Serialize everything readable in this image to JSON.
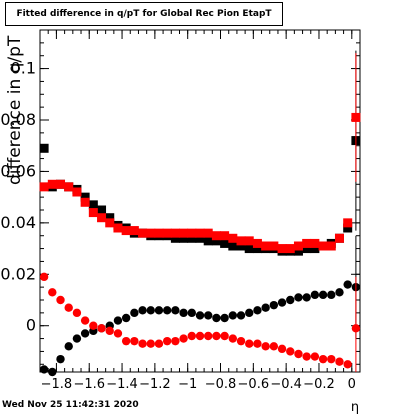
{
  "title": "Fitted difference in q/pT for Global Rec Pion EtapT",
  "timestamp": "Wed Nov 25 11:42:31 2020",
  "chart_data": {
    "type": "scatter",
    "title": "Fitted difference in q/pT for Global Rec Pion EtapT",
    "xlabel": "η",
    "ylabel": "difference in q/pT",
    "xlim": [
      -1.9,
      0.05
    ],
    "ylim": [
      -0.018,
      0.115
    ],
    "x_ticks": [
      -1.8,
      -1.6,
      -1.4,
      -1.2,
      -1,
      -0.8,
      -0.6,
      -0.4,
      -0.2,
      0
    ],
    "x_tick_labels": [
      "−1.8",
      "−1.6",
      "−1.4",
      "−1.2",
      "−1",
      "−0.8",
      "−0.6",
      "−0.4",
      "−0.2",
      "0"
    ],
    "y_ticks": [
      0,
      0.02,
      0.04,
      0.06,
      0.08,
      0.1
    ],
    "y_tick_labels": [
      "0",
      "0.02",
      "0.04",
      "0.06",
      "0.08",
      "0.1"
    ],
    "grid": false,
    "legend": "none",
    "series": [
      {
        "marker": "square",
        "color": "#000000",
        "x": [
          -1.875,
          -1.825,
          -1.775,
          -1.725,
          -1.675,
          -1.625,
          -1.575,
          -1.525,
          -1.475,
          -1.425,
          -1.375,
          -1.325,
          -1.275,
          -1.225,
          -1.175,
          -1.125,
          -1.075,
          -1.025,
          -0.975,
          -0.925,
          -0.875,
          -0.825,
          -0.775,
          -0.725,
          -0.675,
          -0.625,
          -0.575,
          -0.525,
          -0.475,
          -0.425,
          -0.375,
          -0.325,
          -0.275,
          -0.225,
          -0.175,
          -0.125,
          -0.075,
          -0.025,
          0.025
        ],
        "y": [
          0.069,
          0.054,
          0.055,
          0.054,
          0.053,
          0.05,
          0.047,
          0.045,
          0.042,
          0.039,
          0.038,
          0.036,
          0.036,
          0.035,
          0.035,
          0.035,
          0.034,
          0.034,
          0.034,
          0.034,
          0.033,
          0.033,
          0.032,
          0.031,
          0.031,
          0.03,
          0.03,
          0.03,
          0.03,
          0.029,
          0.029,
          0.029,
          0.03,
          0.03,
          0.031,
          0.032,
          0.034,
          0.038,
          0.072
        ],
        "error": [
          0.0015,
          0.001,
          0.001,
          0.001,
          0.001,
          0.001,
          0.001,
          0.001,
          0.001,
          0.001,
          0.001,
          0.001,
          0.001,
          0.001,
          0.001,
          0.001,
          0.001,
          0.001,
          0.001,
          0.001,
          0.001,
          0.001,
          0.001,
          0.001,
          0.001,
          0.001,
          0.001,
          0.001,
          0.001,
          0.001,
          0.001,
          0.001,
          0.001,
          0.001,
          0.001,
          0.001,
          0.001,
          0.001,
          0.035
        ]
      },
      {
        "marker": "square",
        "color": "#ff0000",
        "x": [
          -1.875,
          -1.825,
          -1.775,
          -1.725,
          -1.675,
          -1.625,
          -1.575,
          -1.525,
          -1.475,
          -1.425,
          -1.375,
          -1.325,
          -1.275,
          -1.225,
          -1.175,
          -1.125,
          -1.075,
          -1.025,
          -0.975,
          -0.925,
          -0.875,
          -0.825,
          -0.775,
          -0.725,
          -0.675,
          -0.625,
          -0.575,
          -0.525,
          -0.475,
          -0.425,
          -0.375,
          -0.325,
          -0.275,
          -0.225,
          -0.175,
          -0.125,
          -0.075,
          -0.025,
          0.025
        ],
        "y": [
          0.054,
          0.055,
          0.055,
          0.054,
          0.052,
          0.048,
          0.044,
          0.042,
          0.04,
          0.038,
          0.037,
          0.037,
          0.036,
          0.036,
          0.036,
          0.036,
          0.036,
          0.036,
          0.036,
          0.036,
          0.036,
          0.035,
          0.035,
          0.034,
          0.033,
          0.033,
          0.032,
          0.031,
          0.031,
          0.03,
          0.03,
          0.031,
          0.032,
          0.032,
          0.031,
          0.031,
          0.034,
          0.04,
          0.081
        ],
        "error": [
          0.0015,
          0.001,
          0.001,
          0.001,
          0.001,
          0.001,
          0.001,
          0.001,
          0.001,
          0.001,
          0.001,
          0.001,
          0.001,
          0.001,
          0.001,
          0.001,
          0.001,
          0.001,
          0.001,
          0.001,
          0.001,
          0.001,
          0.001,
          0.001,
          0.001,
          0.001,
          0.001,
          0.001,
          0.001,
          0.001,
          0.001,
          0.001,
          0.001,
          0.001,
          0.001,
          0.001,
          0.001,
          0.001,
          0.025
        ]
      },
      {
        "marker": "circle",
        "color": "#000000",
        "x": [
          -1.875,
          -1.825,
          -1.775,
          -1.725,
          -1.675,
          -1.625,
          -1.575,
          -1.525,
          -1.475,
          -1.425,
          -1.375,
          -1.325,
          -1.275,
          -1.225,
          -1.175,
          -1.125,
          -1.075,
          -1.025,
          -0.975,
          -0.925,
          -0.875,
          -0.825,
          -0.775,
          -0.725,
          -0.675,
          -0.625,
          -0.575,
          -0.525,
          -0.475,
          -0.425,
          -0.375,
          -0.325,
          -0.275,
          -0.225,
          -0.175,
          -0.125,
          -0.075,
          -0.025,
          0.025
        ],
        "y": [
          -0.017,
          -0.018,
          -0.013,
          -0.008,
          -0.005,
          -0.003,
          -0.002,
          -0.001,
          0.0,
          0.002,
          0.003,
          0.005,
          0.006,
          0.006,
          0.006,
          0.006,
          0.006,
          0.005,
          0.005,
          0.004,
          0.004,
          0.003,
          0.003,
          0.004,
          0.004,
          0.005,
          0.006,
          0.007,
          0.008,
          0.009,
          0.01,
          0.011,
          0.011,
          0.012,
          0.012,
          0.012,
          0.013,
          0.016,
          0.015
        ],
        "error": [
          0.001,
          0.001,
          0.001,
          0.001,
          0.001,
          0.001,
          0.001,
          0.001,
          0.001,
          0.001,
          0.001,
          0.001,
          0.001,
          0.001,
          0.001,
          0.001,
          0.001,
          0.001,
          0.001,
          0.001,
          0.001,
          0.001,
          0.001,
          0.001,
          0.001,
          0.001,
          0.001,
          0.001,
          0.001,
          0.001,
          0.001,
          0.001,
          0.001,
          0.001,
          0.001,
          0.001,
          0.001,
          0.001,
          0.02
        ]
      },
      {
        "marker": "circle",
        "color": "#ff0000",
        "x": [
          -1.875,
          -1.825,
          -1.775,
          -1.725,
          -1.675,
          -1.625,
          -1.575,
          -1.525,
          -1.475,
          -1.425,
          -1.375,
          -1.325,
          -1.275,
          -1.225,
          -1.175,
          -1.125,
          -1.075,
          -1.025,
          -0.975,
          -0.925,
          -0.875,
          -0.825,
          -0.775,
          -0.725,
          -0.675,
          -0.625,
          -0.575,
          -0.525,
          -0.475,
          -0.425,
          -0.375,
          -0.325,
          -0.275,
          -0.225,
          -0.175,
          -0.125,
          -0.075,
          -0.025,
          0.025
        ],
        "y": [
          0.019,
          0.013,
          0.01,
          0.007,
          0.005,
          0.002,
          0.0,
          -0.001,
          -0.002,
          -0.003,
          -0.006,
          -0.006,
          -0.007,
          -0.007,
          -0.007,
          -0.006,
          -0.006,
          -0.005,
          -0.004,
          -0.004,
          -0.004,
          -0.004,
          -0.004,
          -0.005,
          -0.006,
          -0.007,
          -0.007,
          -0.008,
          -0.008,
          -0.009,
          -0.01,
          -0.011,
          -0.012,
          -0.012,
          -0.013,
          -0.013,
          -0.014,
          -0.015,
          -0.001
        ],
        "error": [
          0.001,
          0.001,
          0.001,
          0.001,
          0.001,
          0.001,
          0.001,
          0.001,
          0.001,
          0.001,
          0.001,
          0.001,
          0.001,
          0.001,
          0.001,
          0.001,
          0.001,
          0.001,
          0.001,
          0.001,
          0.001,
          0.001,
          0.001,
          0.001,
          0.001,
          0.001,
          0.001,
          0.001,
          0.001,
          0.001,
          0.001,
          0.001,
          0.001,
          0.001,
          0.001,
          0.001,
          0.001,
          0.001,
          0.02
        ]
      }
    ]
  }
}
